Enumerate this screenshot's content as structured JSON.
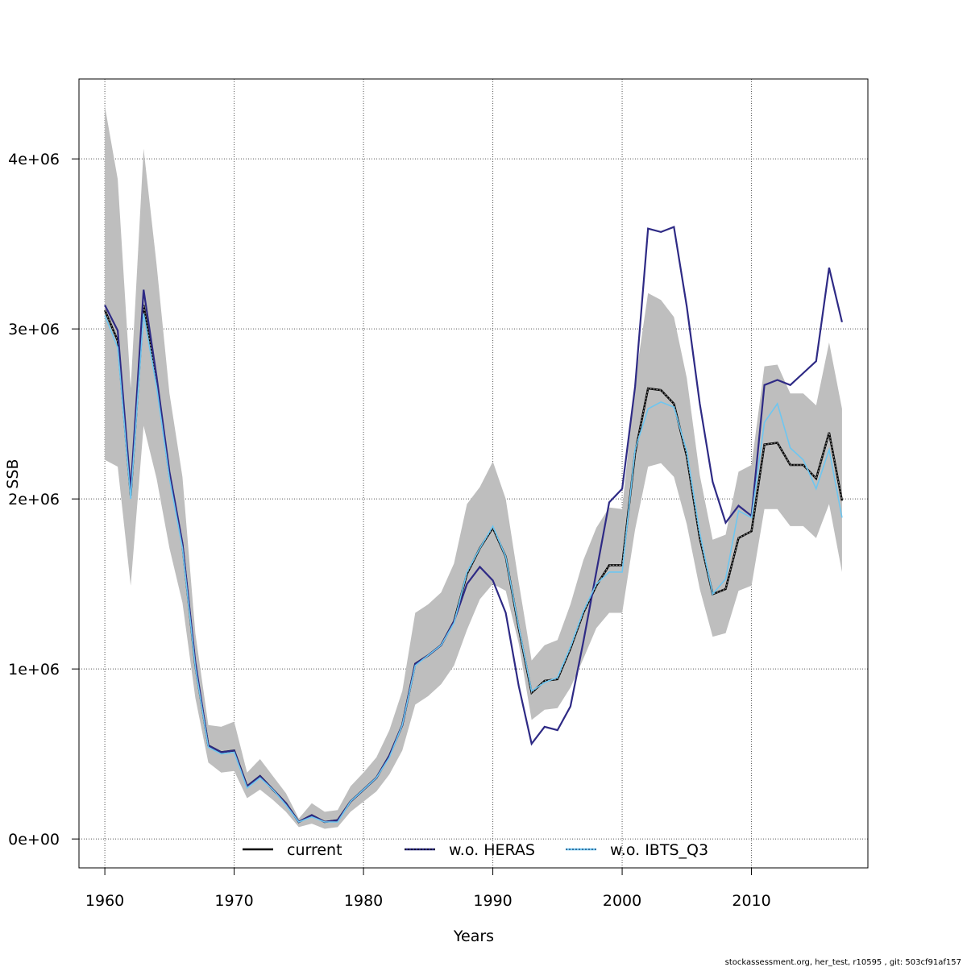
{
  "chart_data": {
    "type": "line",
    "xlabel": "Years",
    "ylabel": "SSB",
    "xlim": [
      1958,
      2019
    ],
    "ylim": [
      -170000,
      4470000
    ],
    "x_ticks": [
      1960,
      1970,
      1980,
      1990,
      2000,
      2010
    ],
    "x_tick_labels": [
      "1960",
      "1970",
      "1980",
      "1990",
      "2000",
      "2010"
    ],
    "y_ticks": [
      0,
      1000000,
      2000000,
      3000000,
      4000000
    ],
    "y_tick_labels": [
      "0e+00",
      "1e+06",
      "2e+06",
      "3e+06",
      "4e+06"
    ],
    "grid": true,
    "legend_position": "bottom",
    "years": [
      1960,
      1961,
      1962,
      1963,
      1964,
      1965,
      1966,
      1967,
      1968,
      1969,
      1970,
      1971,
      1972,
      1973,
      1974,
      1975,
      1976,
      1977,
      1978,
      1979,
      1980,
      1981,
      1982,
      1983,
      1984,
      1985,
      1986,
      1987,
      1988,
      1989,
      1990,
      1991,
      1992,
      1993,
      1994,
      1995,
      1996,
      1997,
      1998,
      1999,
      2000,
      2001,
      2002,
      2003,
      2004,
      2005,
      2006,
      2007,
      2008,
      2009,
      2010,
      2011,
      2012,
      2013,
      2014,
      2015,
      2016,
      2017
    ],
    "confidence_band": {
      "lower": [
        2230000,
        2190000,
        1490000,
        2430000,
        2120000,
        1710000,
        1390000,
        830000,
        450000,
        390000,
        400000,
        240000,
        290000,
        230000,
        160000,
        70000,
        90000,
        60000,
        70000,
        160000,
        220000,
        280000,
        380000,
        520000,
        790000,
        840000,
        910000,
        1020000,
        1230000,
        1410000,
        1500000,
        1460000,
        1150000,
        700000,
        760000,
        770000,
        890000,
        1060000,
        1240000,
        1330000,
        1330000,
        1820000,
        2190000,
        2210000,
        2130000,
        1850000,
        1470000,
        1190000,
        1210000,
        1460000,
        1490000,
        1940000,
        1940000,
        1840000,
        1840000,
        1770000,
        1970000,
        1570000
      ],
      "upper": [
        4310000,
        3880000,
        2650000,
        4060000,
        3380000,
        2620000,
        2130000,
        1210000,
        670000,
        660000,
        690000,
        390000,
        470000,
        370000,
        270000,
        120000,
        210000,
        160000,
        170000,
        310000,
        390000,
        480000,
        640000,
        870000,
        1330000,
        1380000,
        1450000,
        1620000,
        1970000,
        2070000,
        2220000,
        2000000,
        1510000,
        1050000,
        1140000,
        1170000,
        1380000,
        1640000,
        1830000,
        1950000,
        1940000,
        2690000,
        3210000,
        3170000,
        3070000,
        2710000,
        2140000,
        1760000,
        1790000,
        2160000,
        2200000,
        2780000,
        2790000,
        2620000,
        2620000,
        2550000,
        2920000,
        2530000
      ]
    },
    "series": [
      {
        "name": "current",
        "color": "#000000",
        "values": [
          3110000,
          2930000,
          2020000,
          3140000,
          2690000,
          2140000,
          1730000,
          1020000,
          550000,
          510000,
          520000,
          310000,
          370000,
          290000,
          210000,
          100000,
          140000,
          100000,
          110000,
          220000,
          290000,
          360000,
          490000,
          670000,
          1030000,
          1080000,
          1140000,
          1280000,
          1560000,
          1710000,
          1830000,
          1660000,
          1240000,
          860000,
          930000,
          940000,
          1120000,
          1330000,
          1490000,
          1610000,
          1610000,
          2270000,
          2650000,
          2640000,
          2560000,
          2250000,
          1770000,
          1440000,
          1470000,
          1770000,
          1810000,
          2320000,
          2330000,
          2200000,
          2200000,
          2120000,
          2390000,
          1990000
        ]
      },
      {
        "name": "w.o. HERAS",
        "color": "#2e2a85",
        "values": [
          3140000,
          2990000,
          2050000,
          3230000,
          2720000,
          2160000,
          1740000,
          1040000,
          550000,
          510000,
          520000,
          310000,
          370000,
          290000,
          210000,
          100000,
          140000,
          100000,
          110000,
          220000,
          290000,
          360000,
          490000,
          670000,
          1030000,
          1080000,
          1140000,
          1280000,
          1500000,
          1600000,
          1520000,
          1330000,
          900000,
          560000,
          660000,
          640000,
          780000,
          1160000,
          1570000,
          1980000,
          2060000,
          2660000,
          3590000,
          3570000,
          3600000,
          3130000,
          2560000,
          2100000,
          1860000,
          1960000,
          1900000,
          2670000,
          2700000,
          2670000,
          2740000,
          2810000,
          3360000,
          3040000
        ]
      },
      {
        "name": "w.o. IBTS_Q3",
        "color": "#6ec6f0",
        "values": [
          3080000,
          2890000,
          2000000,
          3090000,
          2660000,
          2120000,
          1710000,
          1010000,
          540000,
          500000,
          510000,
          300000,
          360000,
          290000,
          200000,
          100000,
          130000,
          100000,
          100000,
          220000,
          290000,
          360000,
          480000,
          670000,
          1020000,
          1080000,
          1140000,
          1270000,
          1570000,
          1710000,
          1840000,
          1660000,
          1250000,
          870000,
          920000,
          950000,
          1130000,
          1340000,
          1500000,
          1570000,
          1570000,
          2290000,
          2530000,
          2570000,
          2540000,
          2280000,
          1800000,
          1440000,
          1530000,
          1930000,
          1890000,
          2450000,
          2560000,
          2300000,
          2230000,
          2060000,
          2290000,
          1890000
        ]
      }
    ],
    "legend": [
      "current",
      "w.o. HERAS",
      "w.o. IBTS_Q3"
    ]
  },
  "footer": "stockassessment.org, her_test, r10595 , git: 503cf91af157"
}
